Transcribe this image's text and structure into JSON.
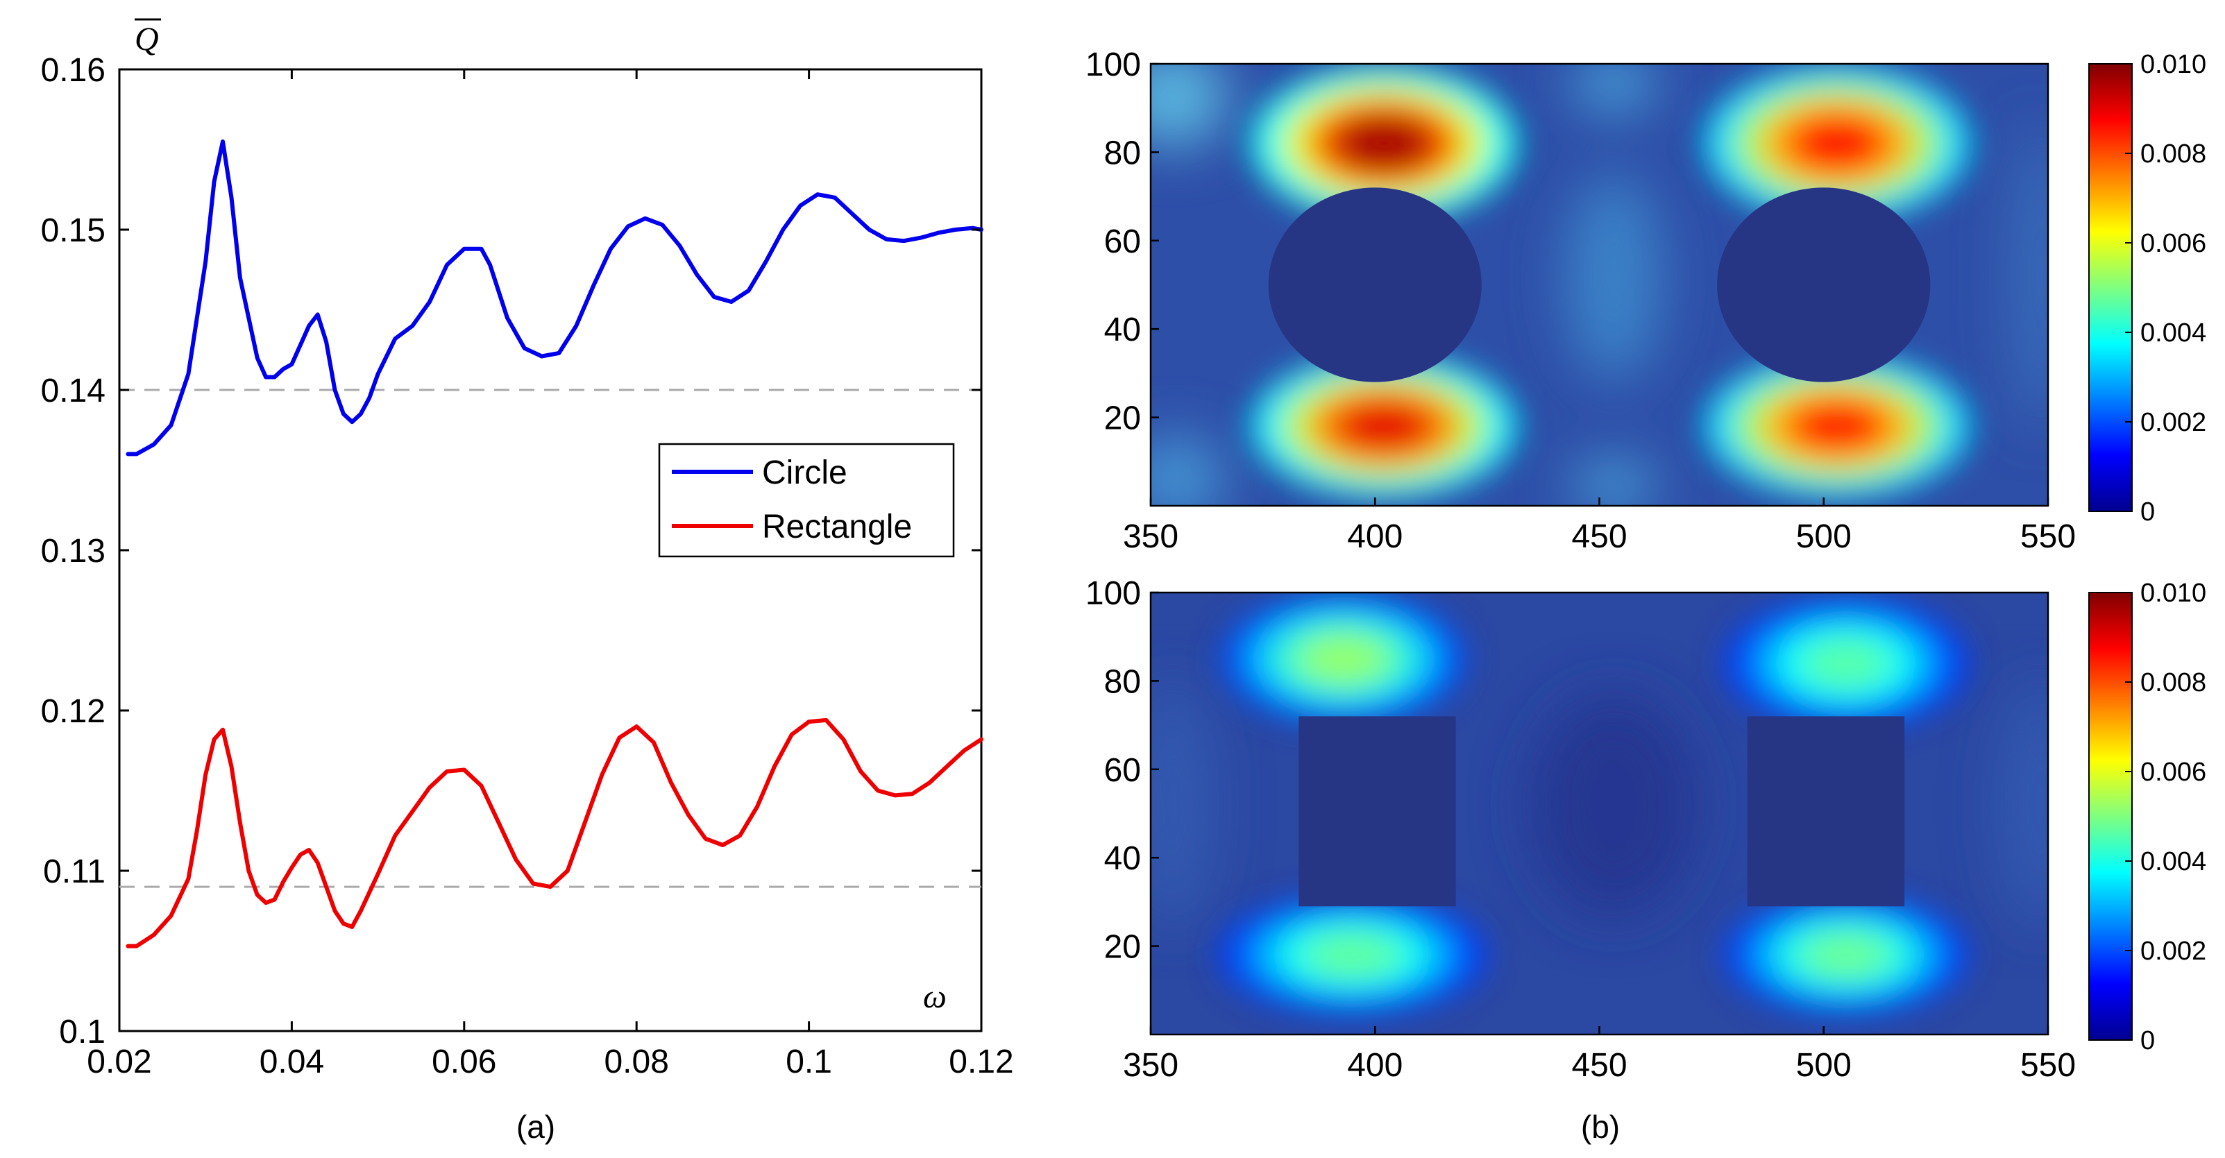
{
  "figure": {
    "caption_a": "(a)",
    "caption_b": "(b)"
  },
  "chart_data": [
    {
      "type": "line",
      "panel": "a",
      "ylabel": "Q̅",
      "ylabel_text": "Q",
      "xlabel": "ω",
      "xlim": [
        0.02,
        0.12
      ],
      "ylim": [
        0.1,
        0.16
      ],
      "xticks": [
        0.02,
        0.04,
        0.06,
        0.08,
        0.1,
        0.12
      ],
      "xtick_labels": [
        "0.02",
        "0.04",
        "0.06",
        "0.08",
        "0.1",
        "0.12"
      ],
      "yticks": [
        0.1,
        0.11,
        0.12,
        0.13,
        0.14,
        0.15,
        0.16
      ],
      "ytick_labels": [
        "0.1",
        "0.11",
        "0.12",
        "0.13",
        "0.14",
        "0.15",
        "0.16"
      ],
      "legend_position": "center-right",
      "reference_lines": [
        {
          "y": 0.14,
          "style": "dashed",
          "color": "#aaaaaa"
        },
        {
          "y": 0.109,
          "style": "dashed",
          "color": "#aaaaaa"
        }
      ],
      "series": [
        {
          "name": "Circle",
          "color": "#0000ee",
          "x": [
            0.021,
            0.022,
            0.024,
            0.026,
            0.028,
            0.03,
            0.031,
            0.032,
            0.033,
            0.034,
            0.035,
            0.036,
            0.037,
            0.038,
            0.039,
            0.04,
            0.041,
            0.042,
            0.043,
            0.044,
            0.045,
            0.046,
            0.047,
            0.048,
            0.049,
            0.05,
            0.052,
            0.054,
            0.056,
            0.058,
            0.06,
            0.062,
            0.063,
            0.065,
            0.067,
            0.069,
            0.071,
            0.073,
            0.075,
            0.077,
            0.079,
            0.081,
            0.083,
            0.085,
            0.087,
            0.089,
            0.091,
            0.093,
            0.095,
            0.097,
            0.099,
            0.101,
            0.103,
            0.105,
            0.107,
            0.109,
            0.111,
            0.113,
            0.115,
            0.117,
            0.119,
            0.12
          ],
          "y": [
            0.136,
            0.136,
            0.1366,
            0.1378,
            0.141,
            0.148,
            0.153,
            0.1555,
            0.152,
            0.147,
            0.1445,
            0.142,
            0.1408,
            0.1408,
            0.1413,
            0.1416,
            0.1428,
            0.144,
            0.1447,
            0.143,
            0.14,
            0.1385,
            0.138,
            0.1385,
            0.1395,
            0.141,
            0.1432,
            0.144,
            0.1455,
            0.1478,
            0.1488,
            0.1488,
            0.1478,
            0.1445,
            0.1426,
            0.1421,
            0.1423,
            0.144,
            0.1465,
            0.1488,
            0.1502,
            0.1507,
            0.1503,
            0.149,
            0.1472,
            0.1458,
            0.1455,
            0.1462,
            0.148,
            0.15,
            0.1515,
            0.1522,
            0.152,
            0.151,
            0.15,
            0.1494,
            0.1493,
            0.1495,
            0.1498,
            0.15,
            0.1501,
            0.15
          ]
        },
        {
          "name": "Rectangle",
          "color": "#ee0000",
          "x": [
            0.021,
            0.022,
            0.024,
            0.026,
            0.028,
            0.029,
            0.03,
            0.031,
            0.032,
            0.033,
            0.034,
            0.035,
            0.036,
            0.037,
            0.038,
            0.039,
            0.04,
            0.041,
            0.042,
            0.043,
            0.044,
            0.045,
            0.046,
            0.047,
            0.048,
            0.05,
            0.052,
            0.054,
            0.056,
            0.058,
            0.06,
            0.062,
            0.064,
            0.066,
            0.068,
            0.07,
            0.072,
            0.074,
            0.076,
            0.078,
            0.08,
            0.082,
            0.084,
            0.086,
            0.088,
            0.09,
            0.092,
            0.094,
            0.096,
            0.098,
            0.1,
            0.102,
            0.104,
            0.106,
            0.108,
            0.11,
            0.112,
            0.114,
            0.116,
            0.118,
            0.12
          ],
          "y": [
            0.1053,
            0.1053,
            0.106,
            0.1072,
            0.1095,
            0.1125,
            0.116,
            0.1182,
            0.1188,
            0.1165,
            0.113,
            0.11,
            0.1085,
            0.108,
            0.1082,
            0.1093,
            0.1102,
            0.111,
            0.1113,
            0.1105,
            0.109,
            0.1075,
            0.1067,
            0.1065,
            0.1075,
            0.1098,
            0.1122,
            0.1137,
            0.1152,
            0.1162,
            0.1163,
            0.1153,
            0.113,
            0.1107,
            0.1092,
            0.109,
            0.11,
            0.113,
            0.116,
            0.1183,
            0.119,
            0.118,
            0.1155,
            0.1135,
            0.112,
            0.1116,
            0.1122,
            0.114,
            0.1165,
            0.1185,
            0.1193,
            0.1194,
            0.1182,
            0.1162,
            0.115,
            0.1147,
            0.1148,
            0.1155,
            0.1165,
            0.1175,
            0.1182
          ]
        }
      ]
    },
    {
      "type": "heatmap",
      "panel": "b-top",
      "obstacle": "Circle",
      "xlim": [
        350,
        550
      ],
      "ylim": [
        0,
        100
      ],
      "xticks": [
        350,
        400,
        450,
        500,
        550
      ],
      "xtick_labels": [
        "350",
        "400",
        "450",
        "500",
        "550"
      ],
      "yticks": [
        20,
        40,
        60,
        80,
        100
      ],
      "ytick_labels": [
        "20",
        "40",
        "60",
        "80",
        "100"
      ],
      "colorbar": {
        "min": 0,
        "max": 0.01,
        "ticks": [
          "0",
          "0.002",
          "0.004",
          "0.006",
          "0.008",
          "0.010"
        ]
      },
      "obstacles": [
        {
          "shape": "circle",
          "cx": 400,
          "cy": 50,
          "r": 22
        },
        {
          "shape": "circle",
          "cx": 500,
          "cy": 50,
          "r": 22
        }
      ],
      "hotspots": [
        {
          "x": 402,
          "y": 82,
          "value": 0.0096,
          "rx": 22,
          "ry": 13
        },
        {
          "x": 402,
          "y": 18,
          "value": 0.009,
          "rx": 22,
          "ry": 12
        },
        {
          "x": 503,
          "y": 82,
          "value": 0.0086,
          "rx": 22,
          "ry": 13
        },
        {
          "x": 503,
          "y": 18,
          "value": 0.0085,
          "rx": 22,
          "ry": 12
        }
      ]
    },
    {
      "type": "heatmap",
      "panel": "b-bottom",
      "obstacle": "Rectangle",
      "xlim": [
        350,
        550
      ],
      "ylim": [
        0,
        100
      ],
      "xticks": [
        350,
        400,
        450,
        500,
        550
      ],
      "xtick_labels": [
        "350",
        "400",
        "450",
        "500",
        "550"
      ],
      "yticks": [
        20,
        40,
        60,
        80,
        100
      ],
      "ytick_labels": [
        "20",
        "40",
        "60",
        "80",
        "100"
      ],
      "colorbar": {
        "min": 0,
        "max": 0.01,
        "ticks": [
          "0",
          "0.002",
          "0.004",
          "0.006",
          "0.008",
          "0.010"
        ]
      },
      "obstacles": [
        {
          "shape": "rect",
          "x0": 383,
          "x1": 418,
          "y0": 29,
          "y1": 72
        },
        {
          "shape": "rect",
          "x0": 483,
          "x1": 518,
          "y0": 29,
          "y1": 72
        }
      ],
      "hotspots": [
        {
          "x": 393,
          "y": 85,
          "value": 0.0052,
          "rx": 20,
          "ry": 11
        },
        {
          "x": 395,
          "y": 18,
          "value": 0.0047,
          "rx": 22,
          "ry": 10
        },
        {
          "x": 505,
          "y": 84,
          "value": 0.0046,
          "rx": 20,
          "ry": 11
        },
        {
          "x": 505,
          "y": 18,
          "value": 0.0048,
          "rx": 20,
          "ry": 10
        }
      ]
    }
  ]
}
